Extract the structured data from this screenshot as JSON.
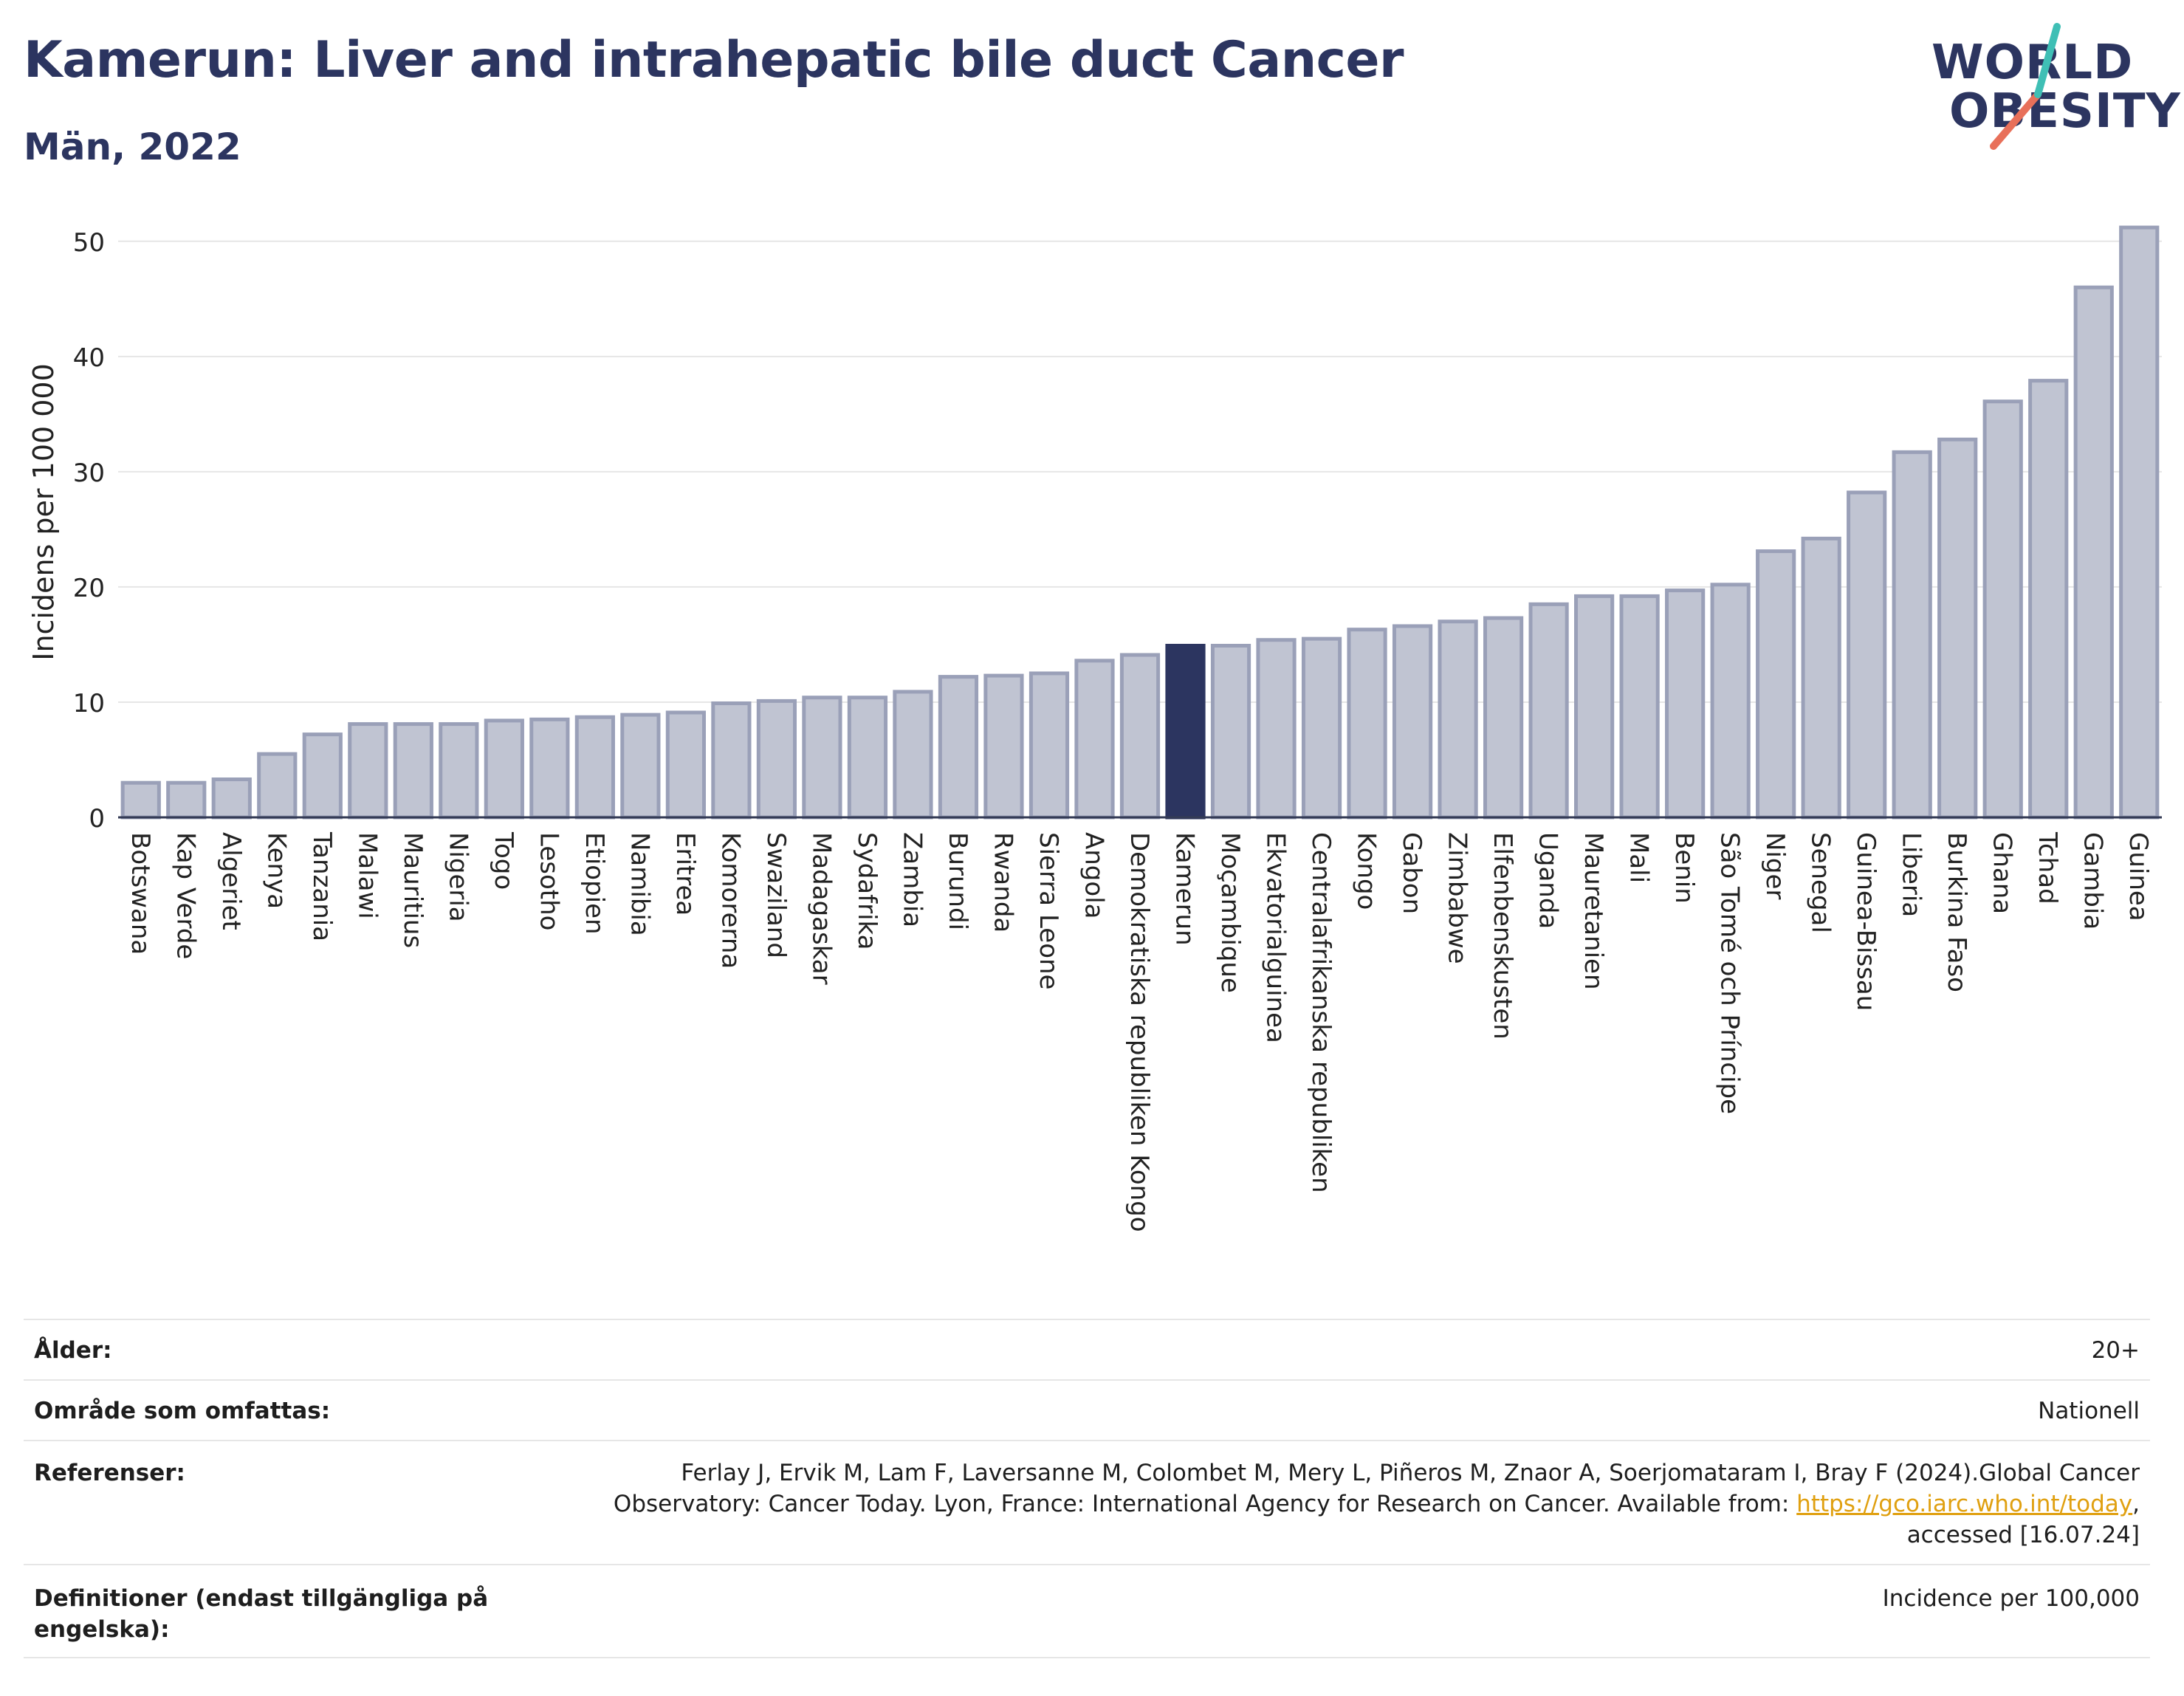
{
  "header": {
    "title": "Kamerun: Liver and intrahepatic bile duct Cancer",
    "subtitle": "Män, 2022"
  },
  "logo": {
    "line1": "WORLD",
    "line2": "OBESITY",
    "accent_teal": "#3fbfb5",
    "accent_coral": "#e8705a",
    "text_color": "#2c3560"
  },
  "colors": {
    "bar": "#c0c4d2",
    "bar_border": "#9aa0b8",
    "highlight": "#2c3560",
    "grid": "#e6e6e6",
    "axis": "#333a55"
  },
  "chart_data": {
    "type": "bar",
    "ylabel": "Incidens per 100 000",
    "xlabel": "",
    "ylim": [
      0,
      53
    ],
    "yticks": [
      0,
      10,
      20,
      30,
      40,
      50
    ],
    "grid": true,
    "highlight": "Kamerun",
    "categories": [
      "Botswana",
      "Kap Verde",
      "Algeriet",
      "Kenya",
      "Tanzania",
      "Malawi",
      "Mauritius",
      "Nigeria",
      "Togo",
      "Lesotho",
      "Etiopien",
      "Namibia",
      "Eritrea",
      "Komorerna",
      "Swaziland",
      "Madagaskar",
      "Sydafrika",
      "Zambia",
      "Burundi",
      "Rwanda",
      "Sierra Leone",
      "Angola",
      "Demokratiska republiken Kongo",
      "Kamerun",
      "Moçambique",
      "Ekvatorialguinea",
      "Centralafrikanska republiken",
      "Kongo",
      "Gabon",
      "Zimbabwe",
      "Elfenbenskusten",
      "Uganda",
      "Mauretanien",
      "Mali",
      "Benin",
      "São Tomé och Príncipe",
      "Niger",
      "Senegal",
      "Guinea-Bissau",
      "Liberia",
      "Burkina Faso",
      "Ghana",
      "Tchad",
      "Gambia",
      "Guinea"
    ],
    "values": [
      3.0,
      3.0,
      3.3,
      5.5,
      7.2,
      8.1,
      8.1,
      8.1,
      8.4,
      8.5,
      8.7,
      8.9,
      9.1,
      9.9,
      10.1,
      10.4,
      10.4,
      10.9,
      12.2,
      12.3,
      12.5,
      13.6,
      14.1,
      14.9,
      14.9,
      15.4,
      15.5,
      16.3,
      16.6,
      17.0,
      17.3,
      18.5,
      19.2,
      19.2,
      19.7,
      20.2,
      23.1,
      24.2,
      28.2,
      31.7,
      32.8,
      36.1,
      37.9,
      46.0,
      51.2
    ]
  },
  "info": {
    "rows": [
      {
        "label": "Ålder:",
        "value": "20+"
      },
      {
        "label": "Område som omfattas:",
        "value": "Nationell"
      },
      {
        "label": "Referenser:",
        "value_line1": "Ferlay J, Ervik M, Lam F, Laversanne M, Colombet M, Mery L, Piñeros M, Znaor A, Soerjomataram I, Bray F (2024).Global Cancer",
        "value_line2a": "Observatory: Cancer Today. Lyon, France: International Agency for Research on Cancer. Available from: ",
        "link": "https://gco.iarc.who.int/today",
        "value_line2b": ",",
        "value_line3": "accessed [16.07.24]"
      },
      {
        "label_line1": "Definitioner (endast tillgängliga på",
        "label_line2": "engelska):",
        "value": "Incidence per 100,000"
      }
    ]
  }
}
